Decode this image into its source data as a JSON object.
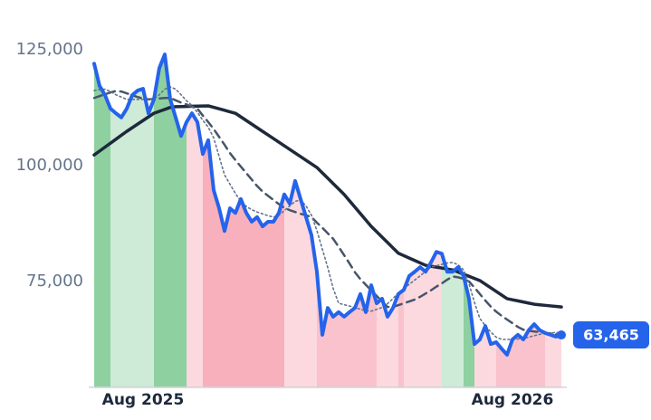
{
  "chart_data": {
    "type": "line",
    "categories": [
      null,
      null,
      null,
      null,
      null,
      null,
      null,
      null,
      null,
      "Aug 2025",
      null,
      null,
      null,
      null,
      null,
      null,
      null,
      null,
      null,
      null,
      null,
      null,
      null,
      null,
      null,
      null,
      null,
      null,
      null,
      null,
      null,
      null,
      null,
      null,
      null,
      null,
      null,
      null,
      null,
      null,
      null,
      null,
      null,
      null,
      null,
      null,
      null,
      null,
      null,
      null,
      null,
      null,
      null,
      null,
      null,
      null,
      null,
      null,
      null,
      null,
      null,
      null,
      null,
      null,
      null,
      null,
      null,
      null,
      null,
      null,
      null,
      null,
      null,
      null,
      null,
      null,
      null,
      "Aug 2026",
      null,
      null,
      null,
      null,
      null,
      null,
      null,
      null,
      null
    ],
    "ylim": [
      52000,
      130000
    ],
    "yticks": [
      {
        "value": 75000,
        "label": "75,000"
      },
      {
        "value": 100000,
        "label": "100,000"
      },
      {
        "value": 125000,
        "label": "125,000"
      }
    ],
    "grid": false,
    "bands": [
      {
        "from": 0,
        "to": 3,
        "color": "#8fd0a0"
      },
      {
        "from": 3,
        "to": 11,
        "color": "#cdebd6"
      },
      {
        "from": 11,
        "to": 17,
        "color": "#8fd0a0"
      },
      {
        "from": 17,
        "to": 20,
        "color": "#fcd9df"
      },
      {
        "from": 20,
        "to": 35,
        "color": "#f8b0bd"
      },
      {
        "from": 35,
        "to": 41,
        "color": "#fcd9df"
      },
      {
        "from": 41,
        "to": 52,
        "color": "#f9c2cc"
      },
      {
        "from": 52,
        "to": 56,
        "color": "#fcd9df"
      },
      {
        "from": 56,
        "to": 57,
        "color": "#f9c2cc"
      },
      {
        "from": 57,
        "to": 64,
        "color": "#fcd9df"
      },
      {
        "from": 64,
        "to": 68,
        "color": "#cdebd6"
      },
      {
        "from": 68,
        "to": 70,
        "color": "#8fd0a0"
      },
      {
        "from": 70,
        "to": 74,
        "color": "#fcd9df"
      },
      {
        "from": 74,
        "to": 83,
        "color": "#f9c2cc"
      },
      {
        "from": 83,
        "to": 86,
        "color": "#fcd9df"
      }
    ],
    "series": [
      {
        "color": "#1e293b",
        "line_style": "solid-thick",
        "values": [
          102300,
          103150,
          104000,
          104850,
          105700,
          106550,
          107400,
          108180,
          108960,
          109740,
          110520,
          111300,
          111720,
          112140,
          112560,
          112720,
          112750,
          112780,
          112810,
          112840,
          112870,
          112900,
          112580,
          112260,
          111940,
          111620,
          111300,
          110520,
          109740,
          108960,
          108180,
          107400,
          106620,
          105840,
          105060,
          104280,
          103500,
          102720,
          101940,
          101160,
          100380,
          99600,
          98440,
          97280,
          96120,
          94960,
          93800,
          92420,
          91040,
          89660,
          88280,
          86900,
          85740,
          84580,
          83420,
          82260,
          81100,
          80580,
          80060,
          79540,
          79020,
          78500,
          78300,
          78100,
          77900,
          77700,
          77500,
          77040,
          76580,
          76120,
          75660,
          75200,
          74420,
          73640,
          72860,
          72080,
          71300,
          71060,
          70820,
          70580,
          70340,
          70100,
          69980,
          69860,
          69740,
          69620,
          69500
        ]
      },
      {
        "color": "#475569",
        "line_style": "dashed",
        "values": [
          114600,
          115000,
          115400,
          115800,
          116100,
          116000,
          115600,
          115200,
          114800,
          114500,
          114300,
          114400,
          114500,
          114600,
          114600,
          114100,
          113600,
          113200,
          112700,
          112300,
          110800,
          109400,
          107900,
          106200,
          104500,
          102700,
          101200,
          99800,
          98400,
          97000,
          95600,
          94400,
          93500,
          92600,
          91700,
          90900,
          90400,
          90000,
          89600,
          89300,
          88900,
          87700,
          86600,
          85400,
          84200,
          82500,
          80700,
          78900,
          77000,
          75500,
          74300,
          73100,
          71900,
          70700,
          69500,
          69500,
          69900,
          70300,
          70700,
          71100,
          71700,
          72400,
          73100,
          73900,
          74600,
          75400,
          76100,
          75900,
          75600,
          75000,
          73700,
          72300,
          70900,
          69600,
          68500,
          67600,
          66800,
          66000,
          65200,
          64600,
          64400,
          64200,
          64100,
          63900,
          63800,
          63600,
          63500
        ]
      },
      {
        "color": "#64748b",
        "line_style": "dotted",
        "values": [
          116200,
          116400,
          116500,
          116000,
          115300,
          114800,
          114300,
          114300,
          114300,
          114300,
          114300,
          114400,
          115300,
          116500,
          117000,
          116500,
          115300,
          114000,
          113000,
          111500,
          109800,
          108300,
          106000,
          102000,
          98000,
          96000,
          94000,
          92300,
          91200,
          90500,
          90000,
          89600,
          89200,
          88900,
          89300,
          90300,
          91300,
          92300,
          92600,
          91300,
          89300,
          86000,
          82000,
          78000,
          73500,
          70300,
          70000,
          69700,
          69400,
          69000,
          68700,
          68600,
          69000,
          69400,
          70200,
          71300,
          72600,
          73500,
          74400,
          75300,
          76200,
          77200,
          78100,
          78400,
          78700,
          79000,
          79100,
          78600,
          77500,
          74500,
          70500,
          67000,
          65500,
          64100,
          63000,
          62500,
          62500,
          62500,
          62600,
          62700,
          63000,
          63300,
          63600,
          63800,
          63900,
          64000,
          64000
        ]
      },
      {
        "color": "#2563eb",
        "line_style": "price",
        "values": [
          122000,
          117200,
          115200,
          112300,
          111300,
          110400,
          112300,
          115200,
          116200,
          116600,
          111300,
          114300,
          121100,
          124000,
          114300,
          110400,
          106400,
          109400,
          111300,
          109400,
          102500,
          105500,
          94700,
          90800,
          85900,
          90800,
          89800,
          92800,
          89800,
          87900,
          88900,
          86900,
          87900,
          87900,
          89800,
          93800,
          91800,
          96700,
          92800,
          88900,
          85000,
          77100,
          63500,
          69300,
          67400,
          68400,
          67400,
          68400,
          69300,
          72300,
          68400,
          74200,
          70300,
          71300,
          67400,
          69300,
          72300,
          73200,
          76200,
          77100,
          78100,
          77100,
          79100,
          81400,
          81000,
          77100,
          77100,
          78100,
          76200,
          71300,
          61500,
          62500,
          65400,
          61500,
          61900,
          60500,
          59200,
          62500,
          63500,
          62500,
          64500,
          65800,
          64500,
          63900,
          63500,
          63100,
          63465
        ],
        "value_labels": [
          null,
          null,
          null,
          null,
          null,
          null,
          null,
          null,
          null,
          null,
          null,
          null,
          null,
          null,
          null,
          null,
          null,
          null,
          null,
          null,
          null,
          null,
          null,
          null,
          null,
          null,
          null,
          null,
          null,
          null,
          null,
          null,
          null,
          null,
          null,
          null,
          null,
          null,
          null,
          null,
          null,
          null,
          null,
          null,
          null,
          null,
          null,
          null,
          null,
          null,
          null,
          null,
          null,
          null,
          null,
          null,
          null,
          null,
          null,
          null,
          null,
          null,
          null,
          null,
          null,
          null,
          null,
          null,
          null,
          null,
          null,
          null,
          null,
          null,
          null,
          null,
          null,
          null,
          null,
          null,
          null,
          null,
          null,
          null,
          null,
          null,
          "63,465"
        ]
      }
    ]
  }
}
